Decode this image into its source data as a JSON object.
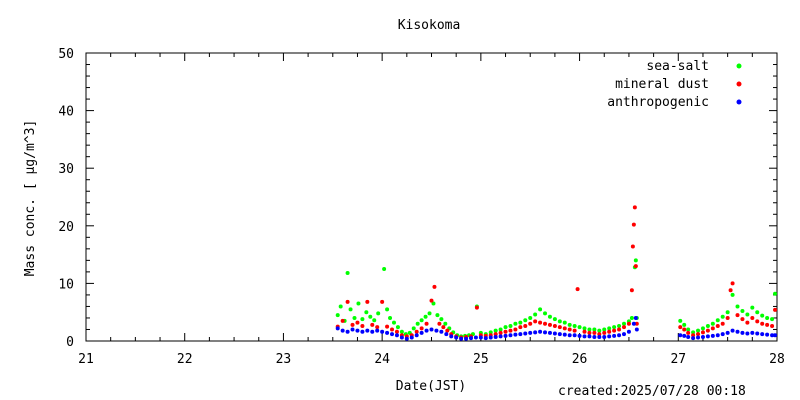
{
  "chart_data": {
    "type": "scatter",
    "title": "Kisokoma",
    "xlabel": "Date(JST)",
    "ylabel": "Mass conc. [ μg/m^3]",
    "xlim": [
      21,
      28
    ],
    "ylim": [
      0,
      50
    ],
    "x_ticks": [
      "21",
      "22",
      "23",
      "24",
      "25",
      "26",
      "27",
      "28"
    ],
    "y_ticks": [
      "0",
      "10",
      "20",
      "30",
      "40",
      "50"
    ],
    "grid": false,
    "legend_position": "top-right",
    "series": [
      {
        "name": "sea-salt",
        "color": "#00ff00",
        "points": [
          [
            23.55,
            4.5
          ],
          [
            23.58,
            6.0
          ],
          [
            23.62,
            3.5
          ],
          [
            23.65,
            11.8
          ],
          [
            23.68,
            5.5
          ],
          [
            23.72,
            4.0
          ],
          [
            23.76,
            6.5
          ],
          [
            23.8,
            3.8
          ],
          [
            23.84,
            5.0
          ],
          [
            23.88,
            4.2
          ],
          [
            23.92,
            3.6
          ],
          [
            23.96,
            4.8
          ],
          [
            24.02,
            12.5
          ],
          [
            24.05,
            5.5
          ],
          [
            24.08,
            4.0
          ],
          [
            24.12,
            3.2
          ],
          [
            24.16,
            2.4
          ],
          [
            24.2,
            1.6
          ],
          [
            24.24,
            1.2
          ],
          [
            24.28,
            1.4
          ],
          [
            24.32,
            2.2
          ],
          [
            24.36,
            3.0
          ],
          [
            24.4,
            3.6
          ],
          [
            24.44,
            4.2
          ],
          [
            24.48,
            4.8
          ],
          [
            24.52,
            6.5
          ],
          [
            24.56,
            4.5
          ],
          [
            24.6,
            3.8
          ],
          [
            24.64,
            3.0
          ],
          [
            24.68,
            2.2
          ],
          [
            24.72,
            1.5
          ],
          [
            24.76,
            1.0
          ],
          [
            24.8,
            0.8
          ],
          [
            24.84,
            0.9
          ],
          [
            24.88,
            1.0
          ],
          [
            24.92,
            1.2
          ],
          [
            24.96,
            6.0
          ],
          [
            25.0,
            1.4
          ],
          [
            25.05,
            1.2
          ],
          [
            25.1,
            1.5
          ],
          [
            25.15,
            1.8
          ],
          [
            25.2,
            2.0
          ],
          [
            25.25,
            2.4
          ],
          [
            25.3,
            2.6
          ],
          [
            25.35,
            3.0
          ],
          [
            25.4,
            3.2
          ],
          [
            25.45,
            3.6
          ],
          [
            25.5,
            4.0
          ],
          [
            25.55,
            4.6
          ],
          [
            25.6,
            5.5
          ],
          [
            25.65,
            4.8
          ],
          [
            25.7,
            4.2
          ],
          [
            25.75,
            3.8
          ],
          [
            25.8,
            3.4
          ],
          [
            25.85,
            3.2
          ],
          [
            25.9,
            2.8
          ],
          [
            25.95,
            2.6
          ],
          [
            26.0,
            2.4
          ],
          [
            26.05,
            2.2
          ],
          [
            26.1,
            2.0
          ],
          [
            26.15,
            2.0
          ],
          [
            26.2,
            1.8
          ],
          [
            26.25,
            2.0
          ],
          [
            26.3,
            2.2
          ],
          [
            26.35,
            2.4
          ],
          [
            26.4,
            2.6
          ],
          [
            26.45,
            3.0
          ],
          [
            26.5,
            3.4
          ],
          [
            26.53,
            4.0
          ],
          [
            26.56,
            12.8
          ],
          [
            26.57,
            14.0
          ],
          [
            26.58,
            4.0
          ],
          [
            27.02,
            3.5
          ],
          [
            27.06,
            2.8
          ],
          [
            27.1,
            2.0
          ],
          [
            27.15,
            1.5
          ],
          [
            27.2,
            1.8
          ],
          [
            27.25,
            2.2
          ],
          [
            27.3,
            2.6
          ],
          [
            27.35,
            3.0
          ],
          [
            27.4,
            3.6
          ],
          [
            27.45,
            4.2
          ],
          [
            27.5,
            5.0
          ],
          [
            27.55,
            8.0
          ],
          [
            27.6,
            6.0
          ],
          [
            27.65,
            5.2
          ],
          [
            27.7,
            4.6
          ],
          [
            27.75,
            5.8
          ],
          [
            27.8,
            5.0
          ],
          [
            27.85,
            4.4
          ],
          [
            27.9,
            4.0
          ],
          [
            27.95,
            3.8
          ],
          [
            27.98,
            8.2
          ]
        ]
      },
      {
        "name": "mineral dust",
        "color": "#ff0000",
        "points": [
          [
            23.55,
            2.5
          ],
          [
            23.6,
            3.5
          ],
          [
            23.65,
            6.8
          ],
          [
            23.7,
            2.8
          ],
          [
            23.75,
            3.2
          ],
          [
            23.8,
            2.6
          ],
          [
            23.85,
            6.8
          ],
          [
            23.9,
            2.8
          ],
          [
            23.95,
            2.4
          ],
          [
            24.0,
            6.8
          ],
          [
            24.05,
            2.5
          ],
          [
            24.1,
            2.0
          ],
          [
            24.15,
            1.6
          ],
          [
            24.2,
            1.0
          ],
          [
            24.25,
            0.8
          ],
          [
            24.3,
            1.0
          ],
          [
            24.35,
            1.6
          ],
          [
            24.4,
            2.2
          ],
          [
            24.45,
            3.0
          ],
          [
            24.5,
            7.0
          ],
          [
            24.53,
            9.4
          ],
          [
            24.58,
            3.0
          ],
          [
            24.62,
            2.4
          ],
          [
            24.66,
            1.8
          ],
          [
            24.7,
            1.2
          ],
          [
            24.75,
            0.8
          ],
          [
            24.8,
            0.6
          ],
          [
            24.85,
            0.7
          ],
          [
            24.9,
            0.8
          ],
          [
            24.96,
            5.8
          ],
          [
            25.0,
            1.0
          ],
          [
            25.05,
            0.9
          ],
          [
            25.1,
            1.0
          ],
          [
            25.15,
            1.2
          ],
          [
            25.2,
            1.4
          ],
          [
            25.25,
            1.6
          ],
          [
            25.3,
            1.8
          ],
          [
            25.35,
            2.0
          ],
          [
            25.4,
            2.4
          ],
          [
            25.45,
            2.6
          ],
          [
            25.5,
            3.0
          ],
          [
            25.55,
            3.4
          ],
          [
            25.6,
            3.2
          ],
          [
            25.65,
            3.0
          ],
          [
            25.7,
            2.8
          ],
          [
            25.75,
            2.6
          ],
          [
            25.8,
            2.4
          ],
          [
            25.85,
            2.2
          ],
          [
            25.9,
            2.0
          ],
          [
            25.95,
            1.8
          ],
          [
            25.98,
            9.0
          ],
          [
            26.05,
            1.6
          ],
          [
            26.1,
            1.4
          ],
          [
            26.15,
            1.4
          ],
          [
            26.2,
            1.2
          ],
          [
            26.25,
            1.4
          ],
          [
            26.3,
            1.6
          ],
          [
            26.35,
            1.8
          ],
          [
            26.4,
            2.0
          ],
          [
            26.45,
            2.4
          ],
          [
            26.5,
            3.0
          ],
          [
            26.53,
            8.8
          ],
          [
            26.54,
            16.4
          ],
          [
            26.55,
            20.2
          ],
          [
            26.56,
            23.2
          ],
          [
            26.57,
            13.0
          ],
          [
            26.58,
            3.0
          ],
          [
            27.02,
            2.4
          ],
          [
            27.06,
            2.0
          ],
          [
            27.1,
            1.4
          ],
          [
            27.15,
            1.0
          ],
          [
            27.2,
            1.2
          ],
          [
            27.25,
            1.5
          ],
          [
            27.3,
            1.8
          ],
          [
            27.35,
            2.2
          ],
          [
            27.4,
            2.6
          ],
          [
            27.45,
            3.0
          ],
          [
            27.5,
            4.0
          ],
          [
            27.53,
            8.8
          ],
          [
            27.55,
            10.0
          ],
          [
            27.6,
            4.5
          ],
          [
            27.65,
            3.8
          ],
          [
            27.7,
            3.2
          ],
          [
            27.75,
            4.0
          ],
          [
            27.8,
            3.4
          ],
          [
            27.85,
            3.0
          ],
          [
            27.9,
            2.8
          ],
          [
            27.95,
            2.6
          ],
          [
            27.98,
            5.4
          ]
        ]
      },
      {
        "name": "anthropogenic",
        "color": "#0000ff",
        "points": [
          [
            23.55,
            2.2
          ],
          [
            23.6,
            1.8
          ],
          [
            23.65,
            1.6
          ],
          [
            23.7,
            2.0
          ],
          [
            23.75,
            1.8
          ],
          [
            23.8,
            1.6
          ],
          [
            23.85,
            1.8
          ],
          [
            23.9,
            1.6
          ],
          [
            23.95,
            1.8
          ],
          [
            24.0,
            1.6
          ],
          [
            24.05,
            1.4
          ],
          [
            24.1,
            1.2
          ],
          [
            24.15,
            1.0
          ],
          [
            24.2,
            0.6
          ],
          [
            24.25,
            0.4
          ],
          [
            24.3,
            0.6
          ],
          [
            24.35,
            1.0
          ],
          [
            24.4,
            1.4
          ],
          [
            24.45,
            1.8
          ],
          [
            24.5,
            2.0
          ],
          [
            24.55,
            1.8
          ],
          [
            24.6,
            1.6
          ],
          [
            24.65,
            1.2
          ],
          [
            24.7,
            0.8
          ],
          [
            24.75,
            0.6
          ],
          [
            24.8,
            0.4
          ],
          [
            24.85,
            0.4
          ],
          [
            24.9,
            0.5
          ],
          [
            24.95,
            0.6
          ],
          [
            25.0,
            0.6
          ],
          [
            25.05,
            0.5
          ],
          [
            25.1,
            0.6
          ],
          [
            25.15,
            0.7
          ],
          [
            25.2,
            0.8
          ],
          [
            25.25,
            0.9
          ],
          [
            25.3,
            1.0
          ],
          [
            25.35,
            1.1
          ],
          [
            25.4,
            1.2
          ],
          [
            25.45,
            1.3
          ],
          [
            25.5,
            1.4
          ],
          [
            25.55,
            1.5
          ],
          [
            25.6,
            1.6
          ],
          [
            25.65,
            1.5
          ],
          [
            25.7,
            1.4
          ],
          [
            25.75,
            1.3
          ],
          [
            25.8,
            1.2
          ],
          [
            25.85,
            1.1
          ],
          [
            25.9,
            1.0
          ],
          [
            25.95,
            1.0
          ],
          [
            26.0,
            0.9
          ],
          [
            26.05,
            0.8
          ],
          [
            26.1,
            0.8
          ],
          [
            26.15,
            0.7
          ],
          [
            26.2,
            0.7
          ],
          [
            26.25,
            0.7
          ],
          [
            26.3,
            0.8
          ],
          [
            26.35,
            0.9
          ],
          [
            26.4,
            1.0
          ],
          [
            26.45,
            1.2
          ],
          [
            26.5,
            1.6
          ],
          [
            26.55,
            3.0
          ],
          [
            26.57,
            4.0
          ],
          [
            26.58,
            2.0
          ],
          [
            27.02,
            1.0
          ],
          [
            27.06,
            0.9
          ],
          [
            27.1,
            0.7
          ],
          [
            27.15,
            0.5
          ],
          [
            27.2,
            0.6
          ],
          [
            27.25,
            0.7
          ],
          [
            27.3,
            0.8
          ],
          [
            27.35,
            0.9
          ],
          [
            27.4,
            1.0
          ],
          [
            27.45,
            1.2
          ],
          [
            27.5,
            1.4
          ],
          [
            27.55,
            1.8
          ],
          [
            27.6,
            1.6
          ],
          [
            27.65,
            1.4
          ],
          [
            27.7,
            1.3
          ],
          [
            27.75,
            1.4
          ],
          [
            27.8,
            1.3
          ],
          [
            27.85,
            1.2
          ],
          [
            27.9,
            1.1
          ],
          [
            27.95,
            1.0
          ],
          [
            27.98,
            1.0
          ]
        ]
      }
    ]
  },
  "footer": {
    "created": "created:2025/07/28 00:18"
  }
}
